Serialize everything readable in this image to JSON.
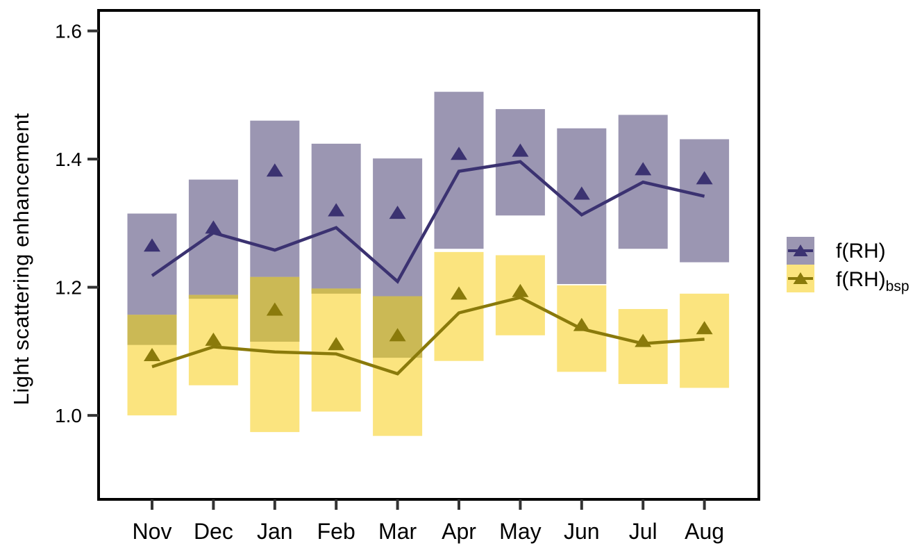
{
  "figure": {
    "background": "#ffffff"
  },
  "chart_data": {
    "type": "bar",
    "title": "",
    "xlabel": "",
    "ylabel": "Light scattering enhancement",
    "categories": [
      "Nov",
      "Dec",
      "Jan",
      "Feb",
      "Mar",
      "Apr",
      "May",
      "Jun",
      "Jul",
      "Aug"
    ],
    "y_ticks": [
      "1.0",
      "1.2",
      "1.4",
      "1.6"
    ],
    "y_tick_values": [
      1.0,
      1.2,
      1.4,
      1.6
    ],
    "ylim": [
      0.869,
      1.632
    ],
    "grid": false,
    "legend_position": "right",
    "overlap_color": "#CBB955",
    "series": [
      {
        "name": "f(RH)",
        "sub": "",
        "bar_color": "#9B96B2",
        "marker_color": "#3B3271",
        "bar_low": [
          1.11,
          1.182,
          1.115,
          1.19,
          1.09,
          1.26,
          1.312,
          1.205,
          1.26,
          1.239
        ],
        "bar_high": [
          1.315,
          1.368,
          1.46,
          1.424,
          1.401,
          1.505,
          1.478,
          1.448,
          1.469,
          1.431
        ],
        "triangle": [
          1.266,
          1.294,
          1.383,
          1.321,
          1.317,
          1.409,
          1.414,
          1.347,
          1.385,
          1.371
        ],
        "line": [
          1.218,
          1.285,
          1.258,
          1.293,
          1.209,
          1.381,
          1.396,
          1.313,
          1.364,
          1.342
        ]
      },
      {
        "name": "f(RH)",
        "sub": "bsp",
        "bar_color": "#FBE47F",
        "marker_color": "#8A7A0B",
        "bar_low": [
          1.0,
          1.047,
          0.974,
          1.006,
          0.968,
          1.085,
          1.125,
          1.068,
          1.049,
          1.043
        ],
        "bar_high": [
          1.157,
          1.188,
          1.216,
          1.198,
          1.186,
          1.255,
          1.25,
          1.203,
          1.166,
          1.19
        ],
        "triangle": [
          1.095,
          1.119,
          1.166,
          1.112,
          1.126,
          1.191,
          1.195,
          1.142,
          1.117,
          1.137
        ],
        "line": [
          1.076,
          1.107,
          1.099,
          1.096,
          1.065,
          1.16,
          1.184,
          1.135,
          1.112,
          1.119
        ]
      }
    ],
    "legend": [
      {
        "label": "f(RH)",
        "sub": ""
      },
      {
        "label": "f(RH)",
        "sub": "bsp"
      }
    ]
  }
}
